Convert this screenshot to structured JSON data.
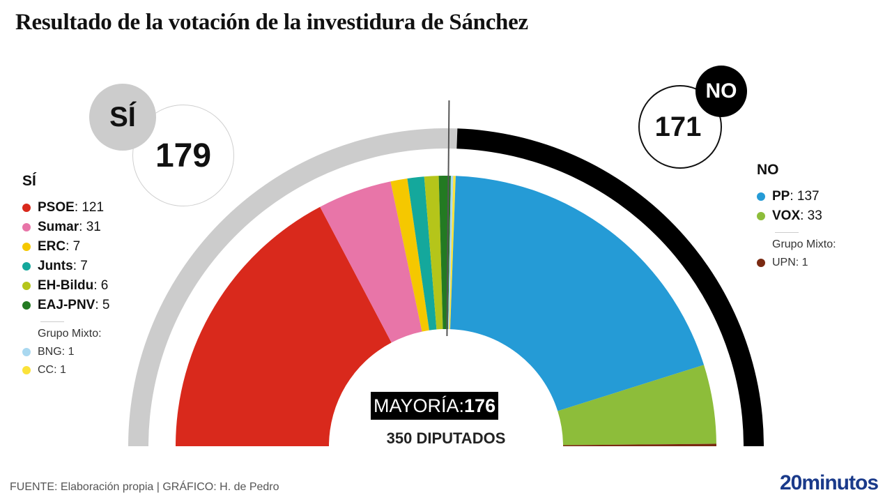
{
  "title": "Resultado de la votación de la investidura de Sánchez",
  "chart_data": {
    "type": "pie",
    "subtype": "parliament-hemicycle",
    "title": "Resultado de la votación de la investidura de Sánchez",
    "total_seats": 350,
    "total_label": "350 DIPUTADOS",
    "majority": 176,
    "majority_label": "MAYORÍA:",
    "sides": [
      {
        "key": "si",
        "label": "SÍ",
        "total": 179,
        "color": "#cccccc"
      },
      {
        "key": "no",
        "label": "NO",
        "total": 171,
        "color": "#000000"
      }
    ],
    "parties": [
      {
        "name": "PSOE",
        "seats": 121,
        "vote": "si",
        "group": "main",
        "color": "#d9291c"
      },
      {
        "name": "Sumar",
        "seats": 31,
        "vote": "si",
        "group": "main",
        "color": "#e875a8"
      },
      {
        "name": "ERC",
        "seats": 7,
        "vote": "si",
        "group": "main",
        "color": "#f5c800"
      },
      {
        "name": "Junts",
        "seats": 7,
        "vote": "si",
        "group": "main",
        "color": "#14a89c"
      },
      {
        "name": "EH-Bildu",
        "seats": 6,
        "vote": "si",
        "group": "main",
        "color": "#b5c51a"
      },
      {
        "name": "EAJ-PNV",
        "seats": 5,
        "vote": "si",
        "group": "main",
        "color": "#237a22"
      },
      {
        "name": "BNG",
        "seats": 1,
        "vote": "si",
        "group": "mixto",
        "color": "#a9d8f0"
      },
      {
        "name": "CC",
        "seats": 1,
        "vote": "si",
        "group": "mixto",
        "color": "#fbe23a"
      },
      {
        "name": "PP",
        "seats": 137,
        "vote": "no",
        "group": "main",
        "color": "#259bd6"
      },
      {
        "name": "VOX",
        "seats": 33,
        "vote": "no",
        "group": "main",
        "color": "#8dbd3a"
      },
      {
        "name": "UPN",
        "seats": 1,
        "vote": "no",
        "group": "mixto",
        "color": "#7a2a12"
      }
    ]
  },
  "legend": {
    "si_heading": "SÍ",
    "no_heading": "NO",
    "mixto_label": "Grupo Mixto:"
  },
  "footer": {
    "source": "FUENTE: Elaboración propia  |  GRÁFICO: H. de Pedro",
    "brand": "20minutos"
  }
}
